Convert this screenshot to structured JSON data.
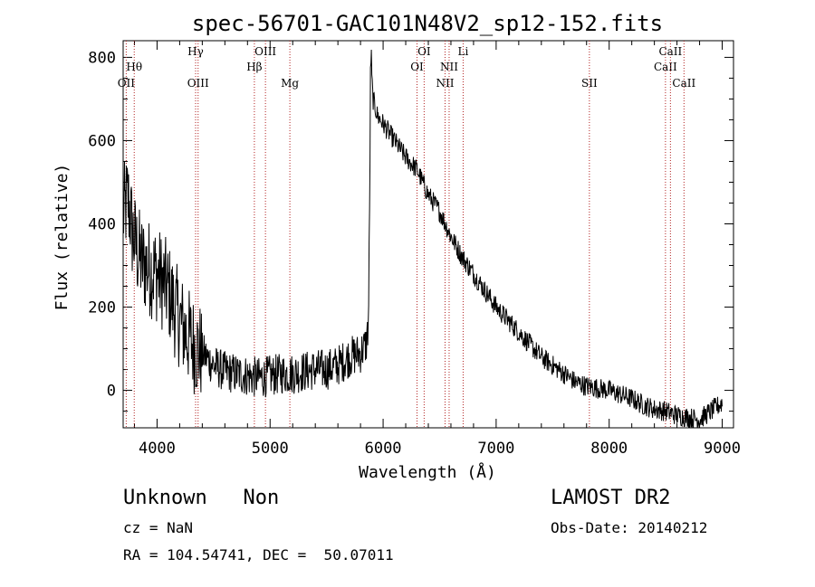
{
  "chart_data": {
    "type": "line",
    "title": "spec-56701-GAC101N48V2_sp12-152.fits",
    "xlabel": "Wavelength (Å)",
    "ylabel": "Flux (relative)",
    "xlim": [
      3700,
      9100
    ],
    "ylim": [
      -90,
      840
    ],
    "x_ticks": [
      "4000",
      "5000",
      "6000",
      "7000",
      "8000",
      "9000"
    ],
    "y_ticks": [
      "0",
      "200",
      "400",
      "600",
      "800"
    ],
    "grid": false,
    "series": [
      {
        "color": "#000000",
        "x": [
          3700,
          3720,
          3740,
          3760,
          3780,
          3800,
          3830,
          3860,
          3900,
          3950,
          4000,
          4050,
          4100,
          4150,
          4200,
          4250,
          4300,
          4350,
          4400,
          4500,
          4600,
          4700,
          4800,
          4900,
          5000,
          5100,
          5200,
          5300,
          5400,
          5500,
          5600,
          5700,
          5800,
          5850,
          5870,
          5880,
          5890,
          5900,
          5910,
          5930,
          5950,
          6000,
          6100,
          6200,
          6300,
          6400,
          6500,
          6550,
          6600,
          6700,
          6800,
          6900,
          7000,
          7100,
          7200,
          7300,
          7400,
          7500,
          7600,
          7700,
          7800,
          7900,
          8000,
          8100,
          8200,
          8300,
          8400,
          8500,
          8600,
          8700,
          8800,
          8900,
          9000
        ],
        "y": [
          420,
          440,
          460,
          430,
          380,
          360,
          330,
          310,
          300,
          290,
          280,
          260,
          240,
          200,
          170,
          140,
          120,
          100,
          90,
          60,
          45,
          40,
          35,
          30,
          35,
          40,
          40,
          45,
          50,
          50,
          60,
          80,
          90,
          110,
          160,
          420,
          820,
          750,
          700,
          680,
          660,
          640,
          600,
          560,
          530,
          470,
          430,
          400,
          370,
          320,
          280,
          240,
          200,
          170,
          140,
          110,
          80,
          60,
          40,
          20,
          10,
          5,
          0,
          -10,
          -20,
          -35,
          -45,
          -50,
          -60,
          -65,
          -70,
          -50,
          -30
        ]
      }
    ],
    "spectral_lines": [
      {
        "name": "OII",
        "wavelength": 3727,
        "row": 3
      },
      {
        "name": "Hθ",
        "wavelength": 3798,
        "row": 2
      },
      {
        "name": "OIII",
        "wavelength": 4363,
        "row": 3
      },
      {
        "name": "Hγ",
        "wavelength": 4341,
        "row": 1
      },
      {
        "name": "Hβ",
        "wavelength": 4861,
        "row": 2
      },
      {
        "name": "OIII",
        "wavelength": 4959,
        "row": 1
      },
      {
        "name": "Mg",
        "wavelength": 5175,
        "row": 3
      },
      {
        "name": "OI",
        "wavelength": 6300,
        "row": 2
      },
      {
        "name": "OI",
        "wavelength": 6363,
        "row": 1
      },
      {
        "name": "NII",
        "wavelength": 6548,
        "row": 3
      },
      {
        "name": "NII",
        "wavelength": 6584,
        "row": 2
      },
      {
        "name": "Li",
        "wavelength": 6708,
        "row": 1
      },
      {
        "name": "SII",
        "wavelength": 7825,
        "row": 3
      },
      {
        "name": "CaII",
        "wavelength": 8498,
        "row": 2
      },
      {
        "name": "CaII",
        "wavelength": 8542,
        "row": 1
      },
      {
        "name": "CaII",
        "wavelength": 8662,
        "row": 3
      }
    ]
  },
  "info": {
    "class_text": "Unknown   Non",
    "survey": "LAMOST DR2",
    "cz": "cz = NaN",
    "obs_date": "Obs-Date: 20140212",
    "coords": "RA = 104.54741, DEC =  50.07011"
  },
  "colors": {
    "spectrum": "#000000",
    "line_markers": "#b22222",
    "background": "#ffffff"
  }
}
